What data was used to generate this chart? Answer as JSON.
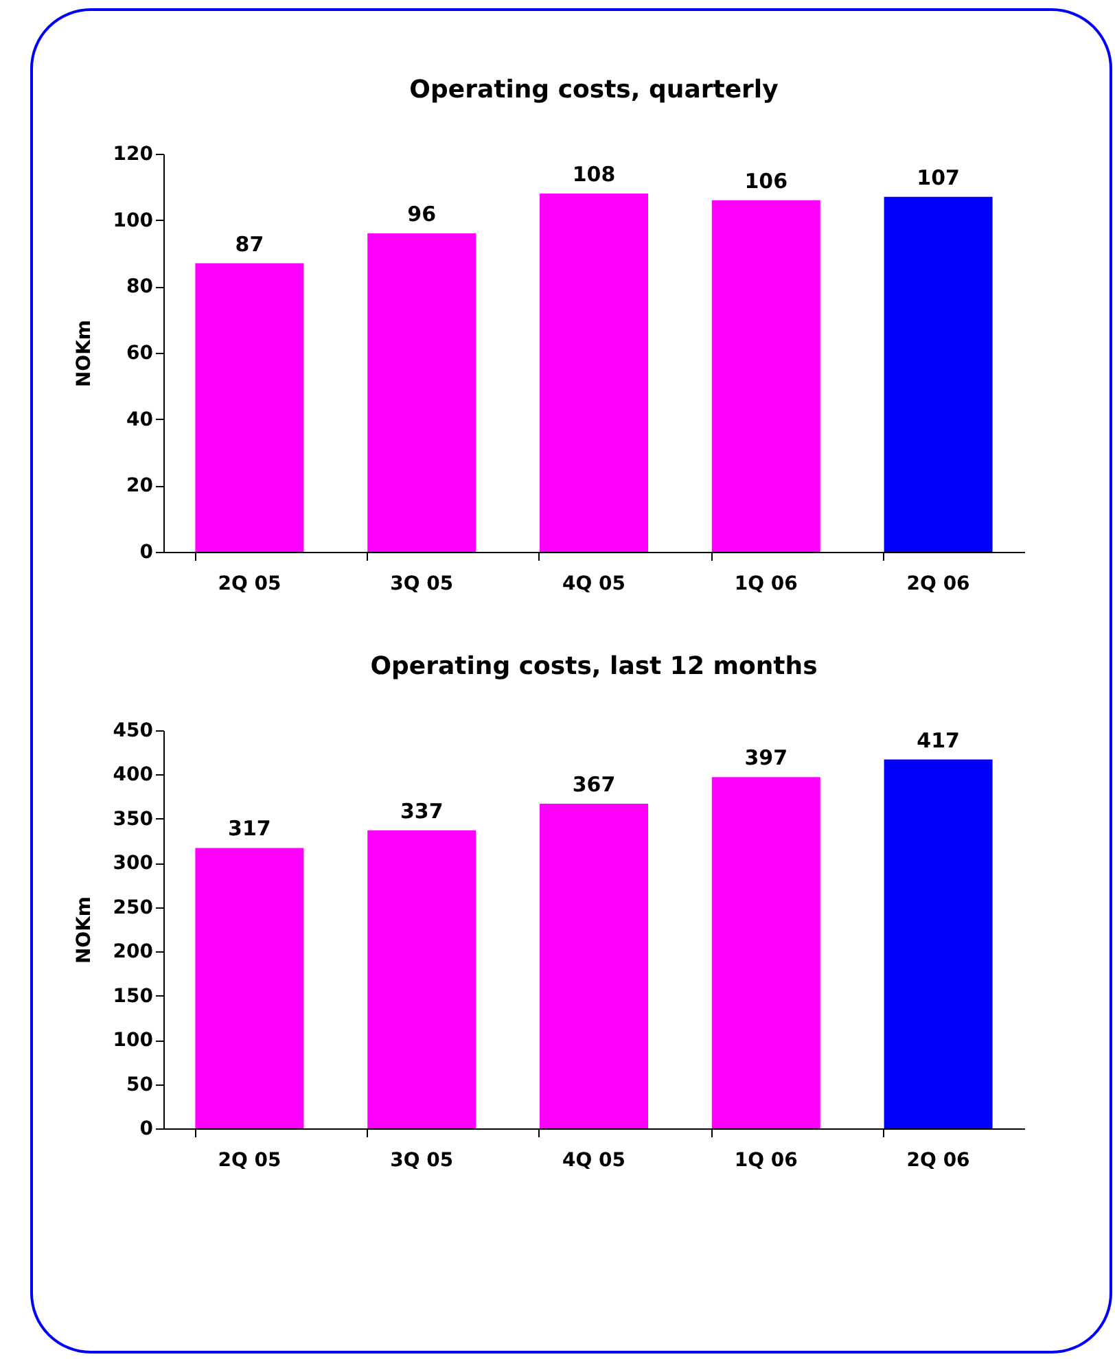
{
  "chart_data": [
    {
      "type": "bar",
      "title": "Operating costs, quarterly",
      "ylabel": "NOKm",
      "categories": [
        "2Q 05",
        "3Q 05",
        "4Q 05",
        "1Q 06",
        "2Q 06"
      ],
      "values": [
        87,
        96,
        108,
        106,
        107
      ],
      "colors": [
        "#ff00ff",
        "#ff00ff",
        "#ff00ff",
        "#ff00ff",
        "#0000ff"
      ],
      "ylim": [
        0,
        120
      ],
      "yticks": [
        0,
        20,
        40,
        60,
        80,
        100,
        120
      ],
      "data_labels": true
    },
    {
      "type": "bar",
      "title": "Operating costs, last 12 months",
      "ylabel": "NOKm",
      "categories": [
        "2Q 05",
        "3Q 05",
        "4Q 05",
        "1Q 06",
        "2Q 06"
      ],
      "values": [
        317,
        337,
        367,
        397,
        417
      ],
      "colors": [
        "#ff00ff",
        "#ff00ff",
        "#ff00ff",
        "#ff00ff",
        "#0000ff"
      ],
      "ylim": [
        0,
        450
      ],
      "yticks": [
        0,
        50,
        100,
        150,
        200,
        250,
        300,
        350,
        400,
        450
      ],
      "data_labels": true
    }
  ]
}
